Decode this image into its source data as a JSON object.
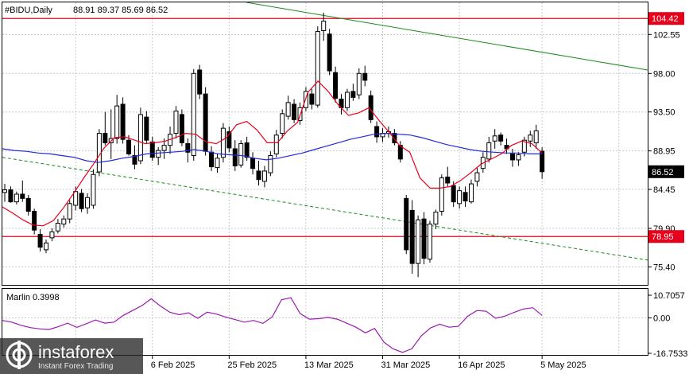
{
  "header": {
    "symbol": "#BIDU,Daily",
    "ohlc": "88.91 89.37 85.69 86.52"
  },
  "indicator": {
    "label": "Marlin 0.3998"
  },
  "price_tags": [
    {
      "value": "104.42",
      "price": 104.42,
      "color": "#e8001a"
    },
    {
      "value": "86.52",
      "price": 86.52,
      "color": "#000000"
    },
    {
      "value": "78.95",
      "price": 78.95,
      "color": "#e8001a"
    }
  ],
  "brand": {
    "name": "instaforex",
    "sub": "Instant Forex Trading"
  },
  "colors": {
    "ma_fast": "#e8001a",
    "ma_slow": "#1f2ad8",
    "trend_line": "#1a8a1a",
    "marlin": "#9a19b0",
    "level": "#e8001a"
  },
  "chart_data": {
    "type": "candlestick",
    "symbol": "#BIDU",
    "timeframe": "Daily",
    "y_ticks": [
      102.55,
      98.0,
      93.5,
      88.95,
      84.45,
      79.9,
      75.4
    ],
    "x_ticks": [
      "6 Feb 2025",
      "25 Feb 2025",
      "13 Mar 2025",
      "31 Mar 2025",
      "16 Apr 2025",
      "5 May 2025"
    ],
    "ylim": [
      73.3,
      106.3
    ],
    "levels": [
      104.42,
      78.95
    ],
    "candles": [
      [
        84.1,
        85.1,
        83.0,
        84.4
      ],
      [
        84.4,
        84.8,
        82.9,
        83.0
      ],
      [
        83.0,
        84.2,
        82.7,
        83.9
      ],
      [
        83.9,
        85.5,
        83.0,
        83.4
      ],
      [
        83.4,
        83.8,
        81.4,
        81.9
      ],
      [
        81.9,
        82.2,
        79.2,
        79.7
      ],
      [
        79.2,
        79.8,
        77.2,
        77.7
      ],
      [
        77.4,
        78.6,
        77.0,
        78.2
      ],
      [
        78.8,
        79.9,
        78.4,
        79.5
      ],
      [
        79.6,
        81.0,
        79.3,
        80.5
      ],
      [
        80.4,
        81.4,
        80.0,
        81.0
      ],
      [
        81.0,
        83.2,
        80.5,
        82.8
      ],
      [
        82.6,
        84.8,
        82.0,
        84.2
      ],
      [
        84.0,
        84.5,
        81.8,
        82.2
      ],
      [
        82.3,
        84.0,
        81.6,
        83.5
      ],
      [
        82.6,
        86.8,
        82.2,
        86.2
      ],
      [
        86.5,
        91.5,
        86.0,
        91.0
      ],
      [
        91.0,
        93.5,
        89.6,
        89.9
      ],
      [
        89.9,
        93.8,
        88.0,
        90.4
      ],
      [
        90.4,
        95.5,
        89.8,
        94.2
      ],
      [
        94.4,
        95.2,
        89.8,
        90.3
      ],
      [
        90.2,
        90.8,
        88.4,
        88.6
      ],
      [
        88.4,
        89.6,
        86.8,
        87.4
      ],
      [
        87.8,
        94.0,
        87.4,
        93.2
      ],
      [
        92.9,
        93.6,
        89.8,
        90.2
      ],
      [
        90.0,
        90.6,
        87.8,
        88.2
      ],
      [
        88.2,
        89.4,
        87.3,
        89.0
      ],
      [
        89.0,
        90.4,
        88.0,
        89.6
      ],
      [
        89.6,
        91.8,
        88.6,
        90.9
      ],
      [
        91.0,
        94.2,
        90.4,
        93.6
      ],
      [
        93.2,
        93.8,
        89.5,
        89.9
      ],
      [
        89.8,
        90.4,
        87.6,
        88.8
      ],
      [
        88.4,
        98.5,
        87.8,
        98.0
      ],
      [
        98.4,
        99.0,
        95.0,
        95.6
      ],
      [
        95.6,
        96.4,
        88.4,
        88.9
      ],
      [
        88.8,
        89.5,
        86.6,
        87.1
      ],
      [
        87.0,
        88.6,
        86.4,
        88.1
      ],
      [
        88.2,
        92.2,
        87.6,
        91.6
      ],
      [
        91.2,
        91.8,
        88.8,
        89.3
      ],
      [
        89.2,
        90.2,
        86.6,
        87.2
      ],
      [
        87.3,
        90.2,
        87.0,
        89.8
      ],
      [
        89.9,
        90.6,
        87.8,
        88.2
      ],
      [
        88.1,
        88.8,
        86.2,
        86.9
      ],
      [
        86.6,
        87.8,
        84.9,
        85.6
      ],
      [
        85.4,
        87.2,
        84.7,
        86.6
      ],
      [
        86.4,
        88.9,
        86.0,
        88.4
      ],
      [
        88.6,
        91.4,
        88.2,
        90.8
      ],
      [
        91.0,
        93.8,
        90.4,
        93.3
      ],
      [
        93.0,
        95.4,
        92.6,
        94.6
      ],
      [
        94.4,
        95.0,
        92.2,
        92.6
      ],
      [
        92.5,
        94.6,
        92.0,
        94.0
      ],
      [
        94.0,
        96.4,
        93.6,
        95.9
      ],
      [
        95.6,
        96.2,
        93.8,
        94.4
      ],
      [
        94.3,
        103.5,
        94.0,
        102.9
      ],
      [
        103.0,
        105.1,
        101.8,
        104.1
      ],
      [
        102.6,
        103.2,
        97.8,
        98.3
      ],
      [
        98.1,
        98.8,
        94.6,
        95.1
      ],
      [
        95.0,
        95.6,
        93.2,
        94.0
      ],
      [
        94.0,
        96.2,
        93.6,
        95.8
      ],
      [
        95.9,
        96.8,
        94.8,
        95.2
      ],
      [
        95.5,
        98.6,
        95.0,
        98.0
      ],
      [
        98.0,
        98.9,
        96.5,
        97.2
      ],
      [
        95.4,
        96.0,
        92.2,
        92.6
      ],
      [
        91.8,
        92.4,
        89.9,
        90.6
      ],
      [
        90.6,
        91.6,
        90.0,
        91.0
      ],
      [
        91.0,
        91.8,
        90.5,
        91.2
      ],
      [
        91.0,
        91.5,
        89.6,
        89.9
      ],
      [
        89.6,
        90.1,
        87.6,
        88.0
      ],
      [
        83.4,
        83.8,
        76.9,
        77.4
      ],
      [
        82.0,
        83.2,
        74.6,
        75.8
      ],
      [
        75.8,
        81.4,
        74.2,
        80.9
      ],
      [
        81.0,
        81.8,
        75.7,
        76.4
      ],
      [
        76.3,
        80.8,
        75.9,
        80.4
      ],
      [
        80.4,
        82.1,
        79.8,
        81.8
      ],
      [
        81.9,
        86.2,
        81.4,
        85.8
      ],
      [
        85.9,
        87.1,
        84.8,
        85.2
      ],
      [
        84.9,
        85.4,
        82.4,
        83.0
      ],
      [
        82.8,
        84.8,
        82.2,
        84.3
      ],
      [
        84.1,
        84.8,
        82.4,
        83.1
      ],
      [
        83.0,
        85.6,
        82.8,
        85.1
      ],
      [
        85.4,
        87.0,
        84.8,
        86.4
      ],
      [
        86.9,
        88.8,
        86.4,
        88.2
      ],
      [
        88.0,
        90.6,
        87.6,
        89.9
      ],
      [
        90.1,
        91.5,
        89.2,
        90.7
      ],
      [
        90.8,
        91.1,
        89.6,
        90.1
      ],
      [
        89.6,
        90.4,
        88.6,
        89.2
      ],
      [
        88.6,
        89.2,
        87.1,
        87.9
      ],
      [
        87.9,
        88.8,
        87.2,
        88.5
      ],
      [
        88.8,
        90.6,
        88.3,
        90.2
      ],
      [
        90.1,
        91.3,
        89.4,
        90.8
      ],
      [
        89.9,
        92.0,
        89.2,
        91.3
      ],
      [
        88.91,
        89.37,
        85.69,
        86.52
      ]
    ],
    "ma_fast": [
      82.4,
      81.7,
      80.9,
      80.3,
      80.2,
      80.8,
      82.3,
      84.0,
      85.8,
      87.5,
      89.3,
      90.5,
      90.6,
      90.2,
      89.8,
      89.9,
      90.1,
      90.5,
      91.0,
      90.9,
      90.0,
      89.8,
      90.5,
      92.0,
      92.4,
      91.4,
      89.9,
      89.9,
      91.3,
      92.3,
      95.8,
      97.1,
      95.9,
      94.3,
      93.1,
      93.4,
      94.0,
      92.5,
      91.1,
      89.6,
      88.8,
      85.8,
      84.6,
      84.6,
      84.8,
      85.5,
      86.4,
      87.4,
      88.0,
      88.6,
      89.6,
      90.1,
      89.8,
      88.7
    ],
    "ma_slow": [
      89.2,
      89.0,
      88.9,
      88.7,
      88.6,
      88.4,
      88.2,
      87.8,
      87.6,
      87.8,
      88.1,
      88.3,
      88.6,
      88.7,
      88.8,
      88.9,
      89.1,
      88.9,
      88.6,
      88.5,
      88.4,
      88.1,
      87.9,
      88.1,
      88.4,
      88.7,
      89.1,
      89.5,
      89.9,
      90.3,
      90.6,
      90.9,
      91.0,
      90.9,
      90.8,
      90.5,
      90.1,
      89.7,
      89.4,
      89.1,
      88.9,
      88.8,
      88.7,
      88.7,
      88.6,
      88.6
    ],
    "marlin": [
      -1.2,
      -2.0,
      -3.5,
      -4.6,
      -5.2,
      -5.5,
      -4.2,
      -2.5,
      -4.5,
      -2.8,
      -1.0,
      -2.5,
      -2.0,
      1.2,
      3.5,
      5.8,
      9.0,
      5.5,
      2.6,
      1.5,
      2.4,
      -0.2,
      2.7,
      1.8,
      0.4,
      -0.8,
      -2.0,
      -1.2,
      -2.6,
      0.5,
      8.6,
      9.5,
      2.0,
      -0.6,
      -0.4,
      0.2,
      -0.6,
      -2.5,
      -4.4,
      -7.1,
      -5.0,
      -11.5,
      -14.7,
      -16.3,
      -14.6,
      -8.6,
      -4.8,
      -3.0,
      -4.4,
      -4.0,
      0.8,
      3.5,
      3.1,
      -0.2,
      0.8,
      2.6,
      4.2,
      4.8,
      1.2
    ],
    "marlin_ylim": [
      -16.7533,
      10.7057
    ],
    "marlin_ticks": [
      "10.7057",
      "0.00",
      "-16.7533"
    ]
  }
}
